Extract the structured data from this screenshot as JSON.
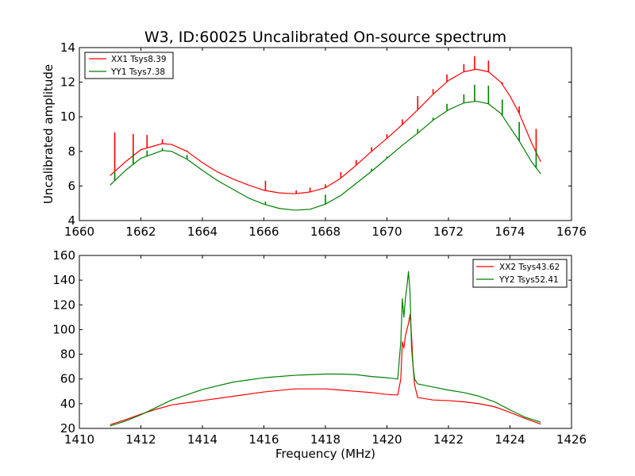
{
  "figure": {
    "title": "W3, ID:60025 Uncalibrated On-source spectrum",
    "background": "#ffffff"
  },
  "chart_data": [
    {
      "type": "line",
      "xlabel": "",
      "ylabel": "Uncalibrated amplitude",
      "xlim": [
        1660,
        1676
      ],
      "ylim": [
        4,
        14
      ],
      "xticks": [
        1660,
        1662,
        1664,
        1666,
        1668,
        1670,
        1672,
        1674,
        1676
      ],
      "yticks": [
        4,
        6,
        8,
        10,
        12,
        14
      ],
      "grid": false,
      "legend": "top-left",
      "series": [
        {
          "name": "XX1 Tsys8.39",
          "color": "#ff0000",
          "x": [
            1661.0,
            1661.5,
            1662.0,
            1662.7,
            1663.0,
            1663.5,
            1664.0,
            1664.5,
            1665.0,
            1665.5,
            1666.0,
            1666.5,
            1667.0,
            1667.5,
            1668.0,
            1668.5,
            1669.0,
            1669.5,
            1670.0,
            1670.5,
            1671.0,
            1671.5,
            1672.0,
            1672.5,
            1672.9,
            1673.3,
            1673.7,
            1674.0,
            1674.3,
            1674.7,
            1675.0
          ],
          "y": [
            6.6,
            7.4,
            8.1,
            8.45,
            8.4,
            8.0,
            7.35,
            6.8,
            6.4,
            6.05,
            5.75,
            5.6,
            5.55,
            5.65,
            5.9,
            6.45,
            7.2,
            8.0,
            8.75,
            9.55,
            10.4,
            11.3,
            12.1,
            12.6,
            12.75,
            12.6,
            12.0,
            11.2,
            10.2,
            8.5,
            7.4
          ]
        },
        {
          "name": "YY1 Tsys7.38",
          "color": "#008000",
          "x": [
            1661.0,
            1661.5,
            1662.0,
            1662.7,
            1663.0,
            1663.5,
            1664.0,
            1664.5,
            1665.0,
            1665.5,
            1666.0,
            1666.5,
            1667.0,
            1667.5,
            1668.0,
            1668.5,
            1669.0,
            1669.5,
            1670.0,
            1670.5,
            1671.0,
            1671.5,
            1672.0,
            1672.5,
            1672.9,
            1673.3,
            1673.7,
            1674.0,
            1674.3,
            1674.7,
            1675.0
          ],
          "y": [
            6.05,
            6.9,
            7.6,
            8.05,
            8.0,
            7.55,
            6.9,
            6.3,
            5.8,
            5.3,
            4.95,
            4.7,
            4.6,
            4.65,
            4.95,
            5.45,
            6.15,
            6.85,
            7.6,
            8.35,
            9.05,
            9.8,
            10.4,
            10.8,
            10.9,
            10.75,
            10.2,
            9.4,
            8.6,
            7.4,
            6.7
          ]
        }
      ],
      "spikes": [
        {
          "color": "#ff0000",
          "x": [
            1661.15,
            1661.75,
            1662.2,
            1662.7,
            1663.5,
            1666.05,
            1667.05,
            1667.5,
            1668.0,
            1668.5,
            1669.0,
            1669.5,
            1670.0,
            1670.5,
            1671.0,
            1671.5,
            1671.95,
            1672.5,
            1672.85,
            1673.3,
            1673.75,
            1674.3,
            1674.85
          ],
          "top": [
            9.1,
            9.0,
            8.95,
            8.7,
            8.05,
            6.3,
            5.75,
            5.9,
            6.1,
            6.8,
            7.5,
            8.25,
            9.0,
            9.85,
            11.2,
            11.6,
            12.45,
            13.05,
            13.5,
            13.25,
            12.0,
            10.6,
            9.3
          ]
        },
        {
          "color": "#008000",
          "x": [
            1661.15,
            1661.75,
            1662.2,
            1662.7,
            1663.5,
            1666.05,
            1668.0,
            1669.5,
            1670.0,
            1671.0,
            1671.5,
            1671.95,
            1672.5,
            1672.85,
            1673.3,
            1673.75,
            1674.3,
            1674.85
          ],
          "top": [
            6.8,
            7.9,
            8.05,
            8.2,
            7.8,
            5.1,
            5.5,
            7.0,
            7.7,
            9.3,
            9.95,
            10.75,
            11.3,
            11.85,
            11.8,
            11.0,
            9.7,
            8.1
          ]
        }
      ]
    },
    {
      "type": "line",
      "xlabel": "Frequency (MHz)",
      "ylabel": "",
      "xlim": [
        1410,
        1426
      ],
      "ylim": [
        20,
        160
      ],
      "xticks": [
        1410,
        1412,
        1414,
        1416,
        1418,
        1420,
        1422,
        1424,
        1426
      ],
      "yticks": [
        20,
        40,
        60,
        80,
        100,
        120,
        140,
        160
      ],
      "grid": false,
      "legend": "top-right",
      "series": [
        {
          "name": "XX2 Tsys43.62",
          "color": "#ff0000",
          "x": [
            1411.0,
            1411.5,
            1412.0,
            1412.5,
            1413.0,
            1414.0,
            1415.0,
            1416.0,
            1417.0,
            1418.0,
            1418.5,
            1419.0,
            1419.5,
            1420.0,
            1420.35,
            1420.45,
            1420.5,
            1420.55,
            1420.6,
            1420.65,
            1420.7,
            1420.75,
            1420.8,
            1420.85,
            1420.9,
            1421.0,
            1421.5,
            1422.0,
            1422.5,
            1423.0,
            1423.5,
            1424.0,
            1424.5,
            1425.0
          ],
          "y": [
            23.0,
            27.0,
            31.5,
            35.5,
            39.0,
            42.5,
            46.0,
            49.5,
            52.0,
            52.0,
            51.0,
            50.0,
            49.0,
            47.5,
            47.0,
            60.0,
            90.0,
            85.0,
            95.0,
            100.0,
            105.0,
            112.0,
            95.0,
            70.0,
            55.0,
            45.0,
            43.0,
            42.5,
            41.5,
            40.0,
            37.5,
            33.0,
            28.0,
            23.5
          ]
        },
        {
          "name": "YY2 Tsys52.41",
          "color": "#008000",
          "x": [
            1411.0,
            1411.5,
            1412.0,
            1412.5,
            1413.0,
            1414.0,
            1415.0,
            1416.0,
            1417.0,
            1418.0,
            1418.5,
            1419.0,
            1419.5,
            1420.0,
            1420.35,
            1420.45,
            1420.5,
            1420.55,
            1420.6,
            1420.65,
            1420.7,
            1420.75,
            1420.8,
            1420.85,
            1420.9,
            1421.0,
            1421.5,
            1422.0,
            1422.5,
            1423.0,
            1423.5,
            1424.0,
            1424.5,
            1425.0
          ],
          "y": [
            22.0,
            26.0,
            31.0,
            37.0,
            43.0,
            51.5,
            57.5,
            61.0,
            63.0,
            64.0,
            64.0,
            63.5,
            62.0,
            61.0,
            60.0,
            90.0,
            125.0,
            110.0,
            125.0,
            135.0,
            147.0,
            130.0,
            85.0,
            70.0,
            60.0,
            56.0,
            53.5,
            51.0,
            49.0,
            46.0,
            41.5,
            35.0,
            29.0,
            25.0
          ]
        }
      ],
      "spikes": []
    }
  ]
}
